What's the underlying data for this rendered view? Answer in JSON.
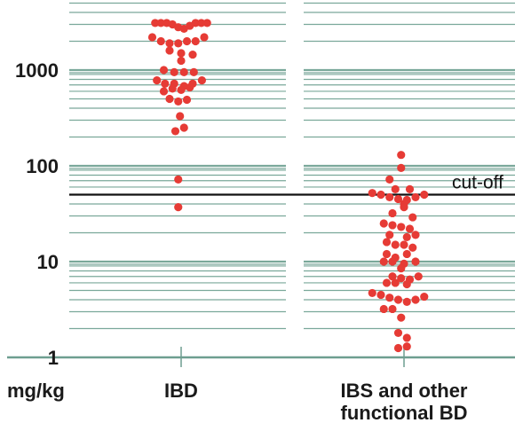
{
  "chart_data": {
    "type": "scatter",
    "scale": "log",
    "unit_label": "mg/kg",
    "y_ticks": [
      {
        "value": 1,
        "label": "1"
      },
      {
        "value": 10,
        "label": "10"
      },
      {
        "value": 100,
        "label": "100"
      },
      {
        "value": 1000,
        "label": "1000"
      }
    ],
    "ylim": [
      1,
      5000
    ],
    "cutoff": {
      "value": 50,
      "label": "cut-off"
    },
    "grid": true,
    "colors": {
      "points": "#e63b35",
      "grid": "#7aa89a",
      "cutoff_line": "#111111",
      "axis": "#6e9e90"
    },
    "groups": [
      {
        "label": "IBD",
        "points": [
          {
            "x": -0.45,
            "y": 3100
          },
          {
            "x": -0.35,
            "y": 3100
          },
          {
            "x": -0.25,
            "y": 3100
          },
          {
            "x": -0.15,
            "y": 3000
          },
          {
            "x": -0.05,
            "y": 2800
          },
          {
            "x": 0.05,
            "y": 2700
          },
          {
            "x": 0.15,
            "y": 2900
          },
          {
            "x": 0.25,
            "y": 3100
          },
          {
            "x": 0.35,
            "y": 3100
          },
          {
            "x": 0.45,
            "y": 3100
          },
          {
            "x": -0.5,
            "y": 2200
          },
          {
            "x": -0.35,
            "y": 2000
          },
          {
            "x": -0.2,
            "y": 1900
          },
          {
            "x": -0.05,
            "y": 1900
          },
          {
            "x": 0.1,
            "y": 2000
          },
          {
            "x": 0.25,
            "y": 2000
          },
          {
            "x": 0.4,
            "y": 2200
          },
          {
            "x": -0.2,
            "y": 1600
          },
          {
            "x": 0.0,
            "y": 1500
          },
          {
            "x": 0.2,
            "y": 1450
          },
          {
            "x": 0.0,
            "y": 1250
          },
          {
            "x": -0.3,
            "y": 1000
          },
          {
            "x": -0.12,
            "y": 950
          },
          {
            "x": 0.05,
            "y": 950
          },
          {
            "x": 0.22,
            "y": 950
          },
          {
            "x": -0.42,
            "y": 780
          },
          {
            "x": -0.28,
            "y": 720
          },
          {
            "x": -0.12,
            "y": 720
          },
          {
            "x": 0.05,
            "y": 680
          },
          {
            "x": 0.2,
            "y": 720
          },
          {
            "x": 0.36,
            "y": 780
          },
          {
            "x": -0.3,
            "y": 600
          },
          {
            "x": -0.15,
            "y": 640
          },
          {
            "x": 0.0,
            "y": 620
          },
          {
            "x": 0.15,
            "y": 660
          },
          {
            "x": -0.2,
            "y": 500
          },
          {
            "x": -0.05,
            "y": 470
          },
          {
            "x": 0.1,
            "y": 490
          },
          {
            "x": -0.02,
            "y": 330
          },
          {
            "x": -0.1,
            "y": 230
          },
          {
            "x": 0.05,
            "y": 250
          },
          {
            "x": -0.05,
            "y": 72
          },
          {
            "x": -0.05,
            "y": 37
          }
        ]
      },
      {
        "label": "IBS and other functional BD",
        "points": [
          {
            "x": -0.05,
            "y": 130
          },
          {
            "x": -0.05,
            "y": 95
          },
          {
            "x": -0.25,
            "y": 72
          },
          {
            "x": -0.15,
            "y": 57
          },
          {
            "x": 0.1,
            "y": 57
          },
          {
            "x": -0.55,
            "y": 52
          },
          {
            "x": -0.4,
            "y": 50
          },
          {
            "x": -0.25,
            "y": 47
          },
          {
            "x": -0.1,
            "y": 45
          },
          {
            "x": 0.05,
            "y": 44
          },
          {
            "x": 0.2,
            "y": 47
          },
          {
            "x": 0.35,
            "y": 50
          },
          {
            "x": 0.0,
            "y": 40
          },
          {
            "x": 0.0,
            "y": 37
          },
          {
            "x": -0.2,
            "y": 32
          },
          {
            "x": 0.15,
            "y": 29
          },
          {
            "x": -0.35,
            "y": 25
          },
          {
            "x": -0.2,
            "y": 24
          },
          {
            "x": -0.05,
            "y": 23
          },
          {
            "x": 0.1,
            "y": 22
          },
          {
            "x": -0.25,
            "y": 19
          },
          {
            "x": 0.05,
            "y": 18
          },
          {
            "x": 0.2,
            "y": 19
          },
          {
            "x": -0.3,
            "y": 16
          },
          {
            "x": -0.15,
            "y": 15
          },
          {
            "x": 0.0,
            "y": 15
          },
          {
            "x": 0.15,
            "y": 14
          },
          {
            "x": -0.3,
            "y": 12
          },
          {
            "x": -0.15,
            "y": 11
          },
          {
            "x": 0.05,
            "y": 12
          },
          {
            "x": -0.35,
            "y": 10
          },
          {
            "x": -0.2,
            "y": 10
          },
          {
            "x": 0.0,
            "y": 9.5
          },
          {
            "x": 0.2,
            "y": 10
          },
          {
            "x": -0.05,
            "y": 8.5
          },
          {
            "x": -0.2,
            "y": 7
          },
          {
            "x": -0.05,
            "y": 6.7
          },
          {
            "x": 0.1,
            "y": 6.5
          },
          {
            "x": 0.25,
            "y": 7
          },
          {
            "x": -0.3,
            "y": 6
          },
          {
            "x": -0.15,
            "y": 6
          },
          {
            "x": 0.05,
            "y": 5.8
          },
          {
            "x": -0.55,
            "y": 4.7
          },
          {
            "x": -0.4,
            "y": 4.5
          },
          {
            "x": -0.25,
            "y": 4.2
          },
          {
            "x": -0.1,
            "y": 4.0
          },
          {
            "x": 0.05,
            "y": 3.8
          },
          {
            "x": 0.2,
            "y": 4.0
          },
          {
            "x": 0.35,
            "y": 4.3
          },
          {
            "x": -0.35,
            "y": 3.2
          },
          {
            "x": -0.2,
            "y": 3.2
          },
          {
            "x": -0.05,
            "y": 2.6
          },
          {
            "x": -0.1,
            "y": 1.8
          },
          {
            "x": 0.05,
            "y": 1.6
          },
          {
            "x": -0.1,
            "y": 1.25
          },
          {
            "x": 0.05,
            "y": 1.3
          }
        ]
      }
    ]
  }
}
